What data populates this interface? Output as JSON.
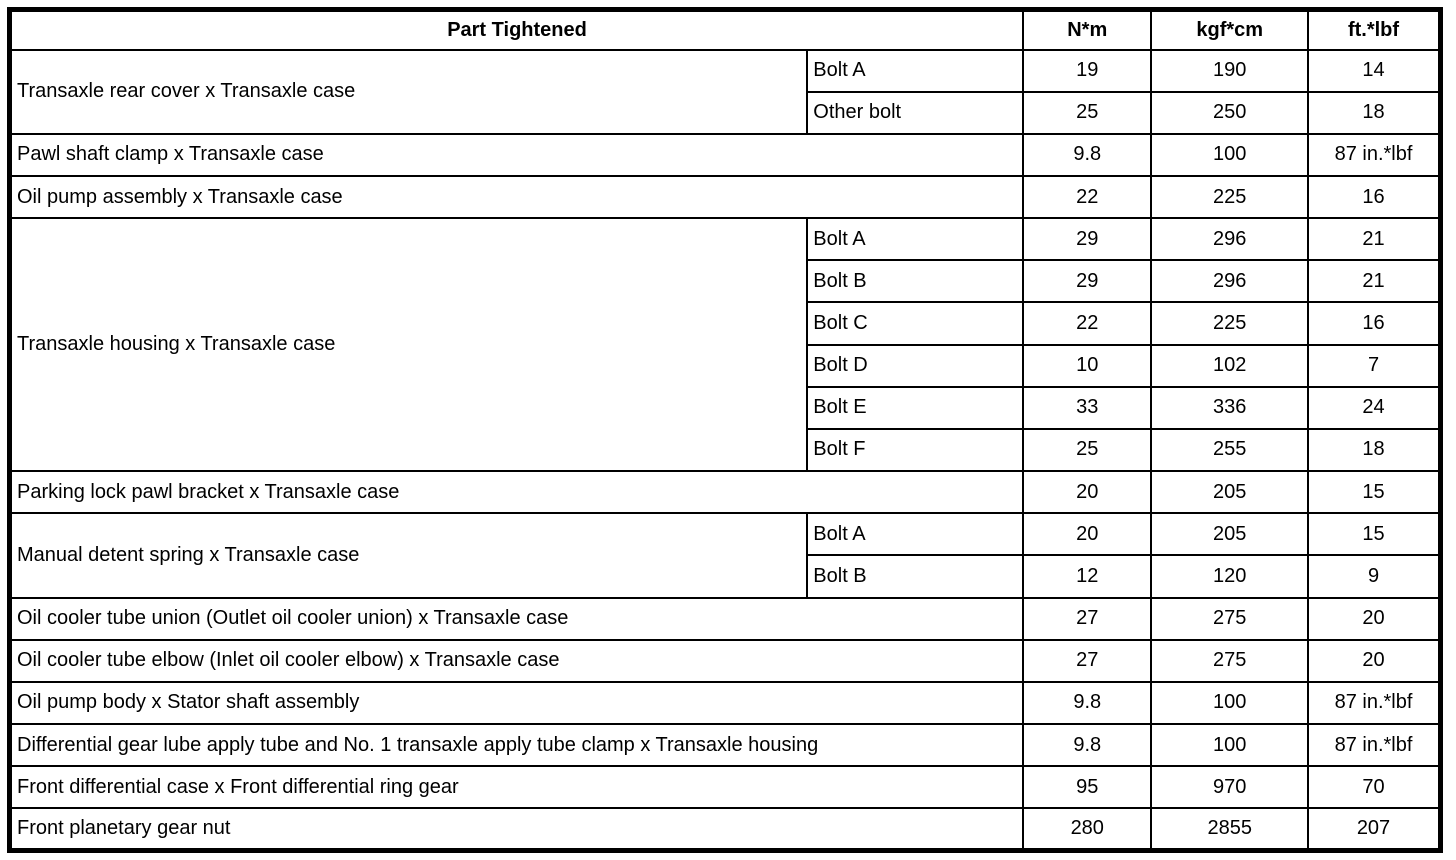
{
  "table": {
    "headers": {
      "part": "Part Tightened",
      "nm": "N*m",
      "kgfcm": "kgf*cm",
      "ftlbf": "ft.*lbf"
    },
    "rows": [
      {
        "part": "Transaxle rear cover x Transaxle case",
        "subs": [
          {
            "label": "Bolt A",
            "nm": "19",
            "kgfcm": "190",
            "ftlbf": "14"
          },
          {
            "label": "Other bolt",
            "nm": "25",
            "kgfcm": "250",
            "ftlbf": "18"
          }
        ]
      },
      {
        "part": "Pawl shaft clamp x Transaxle case",
        "nm": "9.8",
        "kgfcm": "100",
        "ftlbf": "87 in.*lbf"
      },
      {
        "part": "Oil pump assembly x Transaxle case",
        "nm": "22",
        "kgfcm": "225",
        "ftlbf": "16"
      },
      {
        "part": "Transaxle housing x Transaxle case",
        "subs": [
          {
            "label": "Bolt A",
            "nm": "29",
            "kgfcm": "296",
            "ftlbf": "21"
          },
          {
            "label": "Bolt B",
            "nm": "29",
            "kgfcm": "296",
            "ftlbf": "21"
          },
          {
            "label": "Bolt C",
            "nm": "22",
            "kgfcm": "225",
            "ftlbf": "16"
          },
          {
            "label": "Bolt D",
            "nm": "10",
            "kgfcm": "102",
            "ftlbf": "7"
          },
          {
            "label": "Bolt E",
            "nm": "33",
            "kgfcm": "336",
            "ftlbf": "24"
          },
          {
            "label": "Bolt F",
            "nm": "25",
            "kgfcm": "255",
            "ftlbf": "18"
          }
        ]
      },
      {
        "part": "Parking lock pawl bracket x Transaxle case",
        "nm": "20",
        "kgfcm": "205",
        "ftlbf": "15"
      },
      {
        "part": "Manual detent spring x Transaxle case",
        "subs": [
          {
            "label": "Bolt A",
            "nm": "20",
            "kgfcm": "205",
            "ftlbf": "15"
          },
          {
            "label": "Bolt B",
            "nm": "12",
            "kgfcm": "120",
            "ftlbf": "9"
          }
        ]
      },
      {
        "part": "Oil cooler tube union (Outlet oil cooler union) x Transaxle case",
        "nm": "27",
        "kgfcm": "275",
        "ftlbf": "20"
      },
      {
        "part": "Oil cooler tube elbow (Inlet oil cooler elbow) x Transaxle case",
        "nm": "27",
        "kgfcm": "275",
        "ftlbf": "20"
      },
      {
        "part": "Oil pump body x Stator shaft assembly",
        "nm": "9.8",
        "kgfcm": "100",
        "ftlbf": "87 in.*lbf"
      },
      {
        "part": "Differential gear lube apply tube and No. 1 transaxle apply tube clamp x Transaxle housing",
        "nm": "9.8",
        "kgfcm": "100",
        "ftlbf": "87 in.*lbf"
      },
      {
        "part": "Front differential case x Front differential ring gear",
        "nm": "95",
        "kgfcm": "970",
        "ftlbf": "70"
      },
      {
        "part": "Front planetary gear nut",
        "nm": "280",
        "kgfcm": "2855",
        "ftlbf": "207"
      }
    ]
  }
}
